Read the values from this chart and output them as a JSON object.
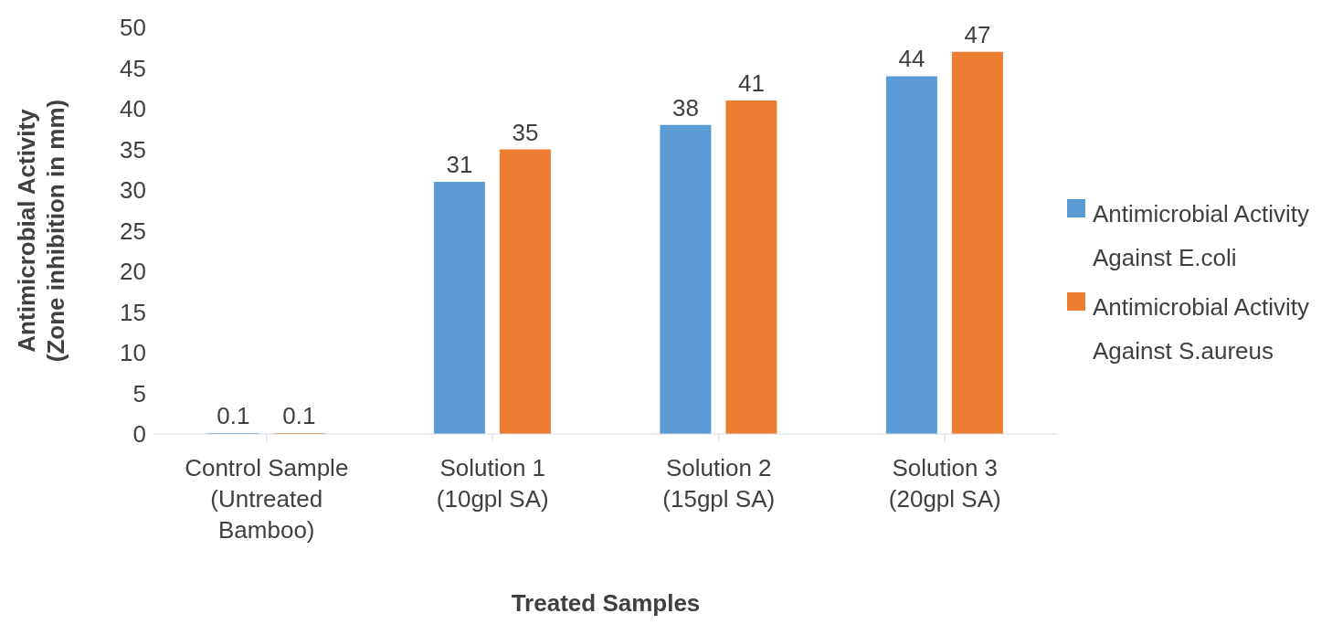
{
  "chart_data": {
    "type": "bar",
    "xlabel": "Treated Samples",
    "ylabel": "Antimicrobial Activity (Zone inhibition in mm)",
    "categories": [
      "Control Sample (Untreated Bamboo)",
      "Solution 1 (10gpl SA)",
      "Solution 2 (15gpl SA)",
      "Solution 3 (20gpl SA)"
    ],
    "series": [
      {
        "name": "Antimicrobial Activity Against E.coli",
        "color": "#5b9bd5",
        "values": [
          0.1,
          31,
          38,
          44
        ]
      },
      {
        "name": "Antimicrobial Activity Against S.aureus",
        "color": "#ed7d31",
        "values": [
          0.1,
          35,
          41,
          47
        ]
      }
    ],
    "ylim": [
      0,
      50
    ],
    "yticks": [
      0,
      5,
      10,
      15,
      20,
      25,
      30,
      35,
      40,
      45,
      50
    ],
    "grid": false,
    "legend": "right",
    "data_labels": true
  }
}
